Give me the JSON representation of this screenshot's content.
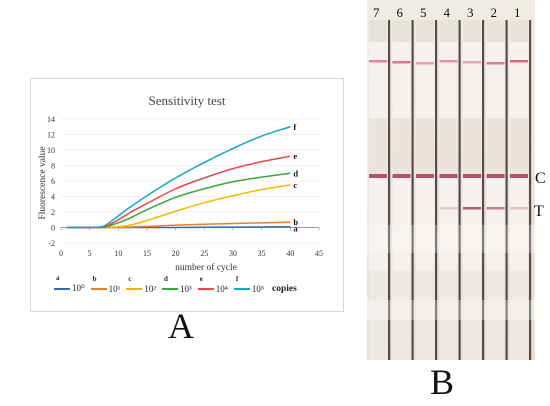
{
  "panel_a": {
    "letter": "A",
    "legend": {
      "items": [
        {
          "letter": "a",
          "text": "10⁰",
          "color": "#2e6db4"
        },
        {
          "letter": "b",
          "text": "10¹",
          "color": "#ed7d31"
        },
        {
          "letter": "c",
          "text": "10²",
          "color": "#f2b800"
        },
        {
          "letter": "d",
          "text": "10³",
          "color": "#3aa83a"
        },
        {
          "letter": "e",
          "text": "10⁴",
          "color": "#e8464a"
        },
        {
          "letter": "f",
          "text": "10⁵",
          "color": "#17a6c4"
        }
      ],
      "unit": "copies"
    }
  },
  "chart_data": {
    "type": "line",
    "title": "Sensitivity test",
    "xlabel": "number of cycle",
    "ylabel": "Fluorescence value",
    "xlim": [
      0,
      45
    ],
    "ylim": [
      -2,
      14
    ],
    "xticks": [
      0,
      5,
      10,
      15,
      20,
      25,
      30,
      35,
      40,
      45
    ],
    "yticks": [
      -2,
      0,
      2,
      4,
      6,
      8,
      10,
      12,
      14
    ],
    "grid": "horizontal",
    "legend_position": "bottom",
    "x": [
      1,
      5,
      7,
      8,
      10,
      12,
      15,
      20,
      25,
      30,
      35,
      40
    ],
    "series": [
      {
        "label": "a",
        "color": "#2e6db4",
        "values": [
          0,
          0,
          0,
          0,
          0,
          0,
          0,
          0,
          0.03,
          0.05,
          0.07,
          0.1
        ]
      },
      {
        "label": "b",
        "color": "#ed7d31",
        "values": [
          0,
          0,
          0,
          0,
          0.02,
          0.06,
          0.15,
          0.3,
          0.42,
          0.52,
          0.6,
          0.7
        ]
      },
      {
        "label": "c",
        "color": "#f2b800",
        "values": [
          0,
          0,
          0,
          0.02,
          0.1,
          0.3,
          0.9,
          2.1,
          3.2,
          4.1,
          4.9,
          5.5
        ]
      },
      {
        "label": "d",
        "color": "#3aa83a",
        "values": [
          0,
          0,
          0.02,
          0.1,
          0.6,
          1.2,
          2.3,
          3.9,
          5.0,
          5.9,
          6.5,
          7.0
        ]
      },
      {
        "label": "e",
        "color": "#e8464a",
        "values": [
          0,
          0,
          0.05,
          0.2,
          1.0,
          1.9,
          3.1,
          5.0,
          6.4,
          7.6,
          8.5,
          9.2
        ]
      },
      {
        "label": "f",
        "color": "#17a6c4",
        "values": [
          0,
          0,
          0.1,
          0.4,
          1.5,
          2.6,
          4.1,
          6.4,
          8.4,
          10.2,
          11.8,
          13.0
        ]
      }
    ]
  },
  "panel_b": {
    "letter": "B",
    "strip_numbers": [
      "7",
      "6",
      "5",
      "4",
      "3",
      "2",
      "1"
    ],
    "control_label": "C",
    "test_label": "T",
    "band_color": "#b04a63"
  }
}
